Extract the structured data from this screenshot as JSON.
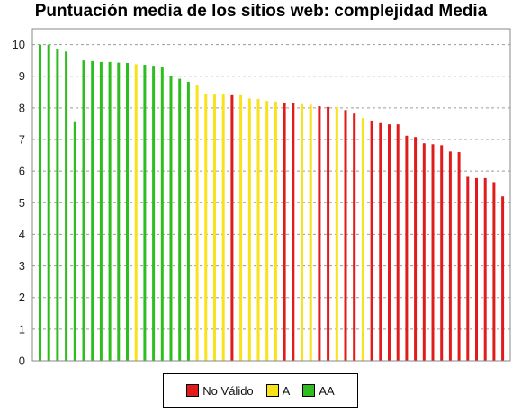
{
  "chart_data": {
    "type": "bar",
    "title": "Puntuación media de los sitios web: complejidad Media",
    "xlabel": "",
    "ylabel": "",
    "ylim": [
      0,
      10.5
    ],
    "yticks": [
      0,
      1,
      2,
      3,
      4,
      5,
      6,
      7,
      8,
      9,
      10
    ],
    "grid": true,
    "legend_position": "bottom",
    "legend": [
      {
        "key": "NV",
        "label": "No Válido",
        "color": "#e01b1b"
      },
      {
        "key": "A",
        "label": "A",
        "color": "#f7e21b"
      },
      {
        "key": "AA",
        "label": "AA",
        "color": "#2ebd1f"
      }
    ],
    "values": [
      10.0,
      10.0,
      9.85,
      9.78,
      7.55,
      9.5,
      9.48,
      9.45,
      9.45,
      9.43,
      9.42,
      9.38,
      9.36,
      9.33,
      9.3,
      9.02,
      8.92,
      8.82,
      8.72,
      8.45,
      8.42,
      8.42,
      8.4,
      8.4,
      8.3,
      8.28,
      8.22,
      8.2,
      8.15,
      8.15,
      8.12,
      8.1,
      8.05,
      8.03,
      8.03,
      7.93,
      7.82,
      7.68,
      7.6,
      7.52,
      7.48,
      7.48,
      7.12,
      7.08,
      6.88,
      6.85,
      6.82,
      6.62,
      6.6,
      5.82,
      5.78,
      5.78,
      5.65,
      5.2
    ],
    "levels": [
      "AA",
      "AA",
      "AA",
      "AA",
      "AA",
      "AA",
      "AA",
      "AA",
      "AA",
      "AA",
      "AA",
      "A",
      "AA",
      "AA",
      "AA",
      "AA",
      "AA",
      "AA",
      "A",
      "A",
      "A",
      "A",
      "NV",
      "A",
      "A",
      "A",
      "A",
      "A",
      "NV",
      "NV",
      "A",
      "A",
      "NV",
      "NV",
      "A",
      "NV",
      "NV",
      "A",
      "NV",
      "NV",
      "NV",
      "NV",
      "NV",
      "NV",
      "NV",
      "NV",
      "NV",
      "NV",
      "NV",
      "NV",
      "NV",
      "NV",
      "NV",
      "NV"
    ]
  }
}
